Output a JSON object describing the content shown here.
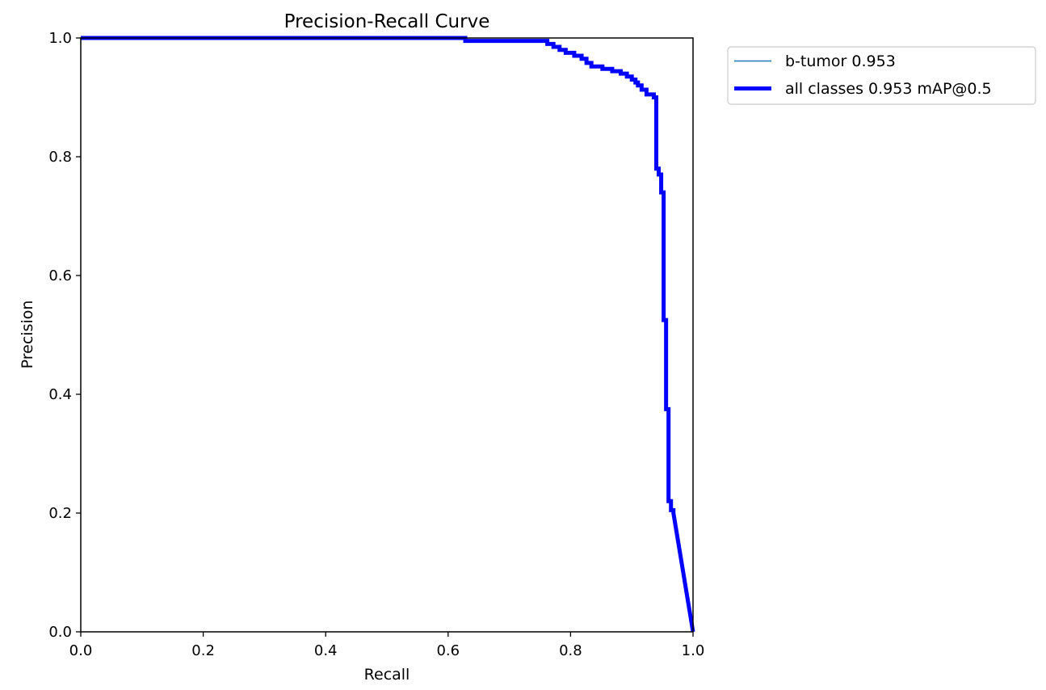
{
  "chart_data": {
    "type": "line",
    "title": "Precision-Recall Curve",
    "xlabel": "Recall",
    "ylabel": "Precision",
    "xlim": [
      0.0,
      1.0
    ],
    "ylim": [
      0.0,
      1.0
    ],
    "xticks": [
      "0.0",
      "0.2",
      "0.4",
      "0.6",
      "0.8",
      "1.0"
    ],
    "yticks": [
      "0.0",
      "0.2",
      "0.4",
      "0.6",
      "0.8",
      "1.0"
    ],
    "grid": false,
    "legend_position": "outside top-right",
    "series": [
      {
        "name": "b-tumor 0.953",
        "color": "#1f77b4",
        "line_style": "thin",
        "x": [
          0.0,
          0.628,
          0.628,
          0.762,
          0.762,
          0.772,
          0.772,
          0.782,
          0.782,
          0.792,
          0.792,
          0.806,
          0.806,
          0.818,
          0.818,
          0.826,
          0.826,
          0.834,
          0.834,
          0.852,
          0.852,
          0.868,
          0.868,
          0.882,
          0.882,
          0.892,
          0.892,
          0.9,
          0.9,
          0.906,
          0.906,
          0.91,
          0.91,
          0.916,
          0.916,
          0.924,
          0.924,
          0.936,
          0.936,
          0.94,
          0.94,
          0.944,
          0.944,
          0.948,
          0.948,
          0.952,
          0.952,
          0.956,
          0.956,
          0.96,
          0.96,
          0.964,
          0.964,
          0.968,
          0.968,
          1.0
        ],
        "y": [
          1.0,
          1.0,
          0.995,
          0.995,
          0.99,
          0.99,
          0.985,
          0.985,
          0.98,
          0.98,
          0.975,
          0.975,
          0.97,
          0.97,
          0.965,
          0.965,
          0.958,
          0.958,
          0.952,
          0.952,
          0.948,
          0.948,
          0.944,
          0.944,
          0.94,
          0.94,
          0.935,
          0.935,
          0.93,
          0.93,
          0.925,
          0.925,
          0.92,
          0.92,
          0.913,
          0.913,
          0.905,
          0.905,
          0.9,
          0.9,
          0.78,
          0.78,
          0.77,
          0.77,
          0.74,
          0.74,
          0.525,
          0.525,
          0.375,
          0.375,
          0.22,
          0.22,
          0.205,
          0.205,
          0.2,
          0.0
        ]
      },
      {
        "name": "all classes 0.953 mAP@0.5",
        "color": "#0000ff",
        "line_style": "thick",
        "x": [
          0.0,
          0.628,
          0.628,
          0.762,
          0.762,
          0.772,
          0.772,
          0.782,
          0.782,
          0.792,
          0.792,
          0.806,
          0.806,
          0.818,
          0.818,
          0.826,
          0.826,
          0.834,
          0.834,
          0.852,
          0.852,
          0.868,
          0.868,
          0.882,
          0.882,
          0.892,
          0.892,
          0.9,
          0.9,
          0.906,
          0.906,
          0.91,
          0.91,
          0.916,
          0.916,
          0.924,
          0.924,
          0.936,
          0.936,
          0.94,
          0.94,
          0.944,
          0.944,
          0.948,
          0.948,
          0.952,
          0.952,
          0.956,
          0.956,
          0.96,
          0.96,
          0.964,
          0.964,
          0.968,
          0.968,
          1.0
        ],
        "y": [
          1.0,
          1.0,
          0.995,
          0.995,
          0.99,
          0.99,
          0.985,
          0.985,
          0.98,
          0.98,
          0.975,
          0.975,
          0.97,
          0.97,
          0.965,
          0.965,
          0.958,
          0.958,
          0.952,
          0.952,
          0.948,
          0.948,
          0.944,
          0.944,
          0.94,
          0.94,
          0.935,
          0.935,
          0.93,
          0.93,
          0.925,
          0.925,
          0.92,
          0.92,
          0.913,
          0.913,
          0.905,
          0.905,
          0.9,
          0.9,
          0.78,
          0.78,
          0.77,
          0.77,
          0.74,
          0.74,
          0.525,
          0.525,
          0.375,
          0.375,
          0.22,
          0.22,
          0.205,
          0.205,
          0.2,
          0.0
        ]
      }
    ]
  }
}
